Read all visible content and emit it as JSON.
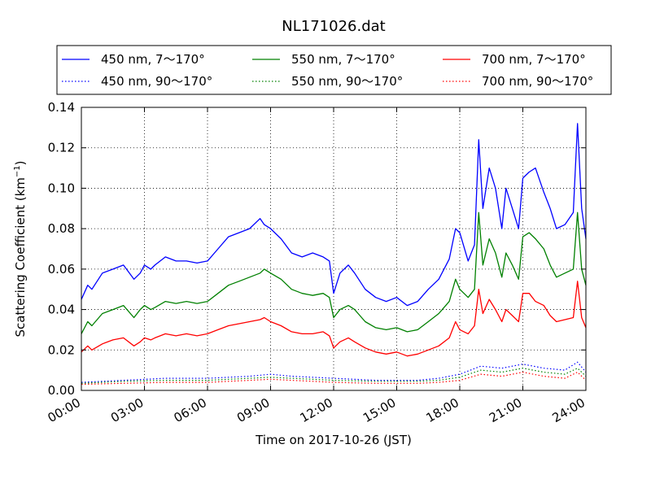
{
  "chart_data": {
    "type": "line",
    "title": "NL171026.dat",
    "xlabel": "Time on 2017-10-26 (JST)",
    "ylabel_main": "Scattering Coefficient (km",
    "ylabel_sup": "−1",
    "ylabel_close": ")",
    "x_unit": "hours",
    "xlim": [
      0,
      24
    ],
    "ylim": [
      0,
      0.14
    ],
    "grid": true,
    "legend": "top",
    "x_ticks": [
      {
        "value": 0,
        "label": "00:00"
      },
      {
        "value": 3,
        "label": "03:00"
      },
      {
        "value": 6,
        "label": "06:00"
      },
      {
        "value": 9,
        "label": "09:00"
      },
      {
        "value": 12,
        "label": "12:00"
      },
      {
        "value": 15,
        "label": "15:00"
      },
      {
        "value": 18,
        "label": "18:00"
      },
      {
        "value": 21,
        "label": "21:00"
      },
      {
        "value": 24,
        "label": "24:00"
      }
    ],
    "y_ticks": [
      {
        "value": 0.0,
        "label": "0.00"
      },
      {
        "value": 0.02,
        "label": "0.02"
      },
      {
        "value": 0.04,
        "label": "0.04"
      },
      {
        "value": 0.06,
        "label": "0.06"
      },
      {
        "value": 0.08,
        "label": "0.08"
      },
      {
        "value": 0.1,
        "label": "0.10"
      },
      {
        "value": 0.12,
        "label": "0.12"
      },
      {
        "value": 0.14,
        "label": "0.14"
      }
    ],
    "series": [
      {
        "name": "450 nm, 7～170°",
        "color": "#0000ff",
        "style": "solid",
        "x": [
          0,
          0.3,
          0.5,
          1,
          1.5,
          2,
          2.5,
          2.8,
          3,
          3.3,
          3.5,
          4,
          4.5,
          5,
          5.5,
          6,
          6.5,
          7,
          7.5,
          8,
          8.5,
          8.7,
          9,
          9.5,
          10,
          10.5,
          11,
          11.5,
          11.8,
          12,
          12.3,
          12.7,
          13,
          13.5,
          14,
          14.5,
          15,
          15.5,
          16,
          16.5,
          17,
          17.5,
          17.8,
          18,
          18.4,
          18.7,
          18.9,
          19.1,
          19.4,
          19.7,
          20,
          20.2,
          20.5,
          20.8,
          21,
          21.3,
          21.6,
          22,
          22.3,
          22.6,
          23,
          23.4,
          23.6,
          23.8,
          24
        ],
        "y": [
          0.045,
          0.052,
          0.05,
          0.058,
          0.06,
          0.062,
          0.055,
          0.058,
          0.062,
          0.06,
          0.062,
          0.066,
          0.064,
          0.064,
          0.063,
          0.064,
          0.07,
          0.076,
          0.078,
          0.08,
          0.085,
          0.082,
          0.08,
          0.075,
          0.068,
          0.066,
          0.068,
          0.066,
          0.064,
          0.048,
          0.058,
          0.062,
          0.058,
          0.05,
          0.046,
          0.044,
          0.046,
          0.042,
          0.044,
          0.05,
          0.055,
          0.065,
          0.08,
          0.078,
          0.064,
          0.072,
          0.124,
          0.09,
          0.11,
          0.1,
          0.08,
          0.1,
          0.09,
          0.08,
          0.105,
          0.108,
          0.11,
          0.098,
          0.09,
          0.08,
          0.082,
          0.088,
          0.132,
          0.09,
          0.075
        ]
      },
      {
        "name": "450 nm, 90～170°",
        "color": "#0000ff",
        "style": "dotted",
        "x": [
          0,
          2,
          4,
          6,
          8,
          9,
          10,
          12,
          14,
          15,
          16,
          17,
          18,
          19,
          20,
          21,
          22,
          23,
          23.6,
          24
        ],
        "y": [
          0.004,
          0.005,
          0.006,
          0.006,
          0.007,
          0.008,
          0.007,
          0.006,
          0.005,
          0.005,
          0.005,
          0.006,
          0.008,
          0.012,
          0.011,
          0.013,
          0.011,
          0.01,
          0.014,
          0.009
        ]
      },
      {
        "name": "550 nm, 7～170°",
        "color": "#008000",
        "style": "solid",
        "x": [
          0,
          0.3,
          0.5,
          1,
          1.5,
          2,
          2.5,
          2.8,
          3,
          3.3,
          3.5,
          4,
          4.5,
          5,
          5.5,
          6,
          6.5,
          7,
          7.5,
          8,
          8.5,
          8.7,
          9,
          9.5,
          10,
          10.5,
          11,
          11.5,
          11.8,
          12,
          12.3,
          12.7,
          13,
          13.5,
          14,
          14.5,
          15,
          15.5,
          16,
          16.5,
          17,
          17.5,
          17.8,
          18,
          18.4,
          18.7,
          18.9,
          19.1,
          19.4,
          19.7,
          20,
          20.2,
          20.5,
          20.8,
          21,
          21.3,
          21.6,
          22,
          22.3,
          22.6,
          23,
          23.4,
          23.6,
          23.8,
          24
        ],
        "y": [
          0.028,
          0.034,
          0.032,
          0.038,
          0.04,
          0.042,
          0.036,
          0.04,
          0.042,
          0.04,
          0.041,
          0.044,
          0.043,
          0.044,
          0.043,
          0.044,
          0.048,
          0.052,
          0.054,
          0.056,
          0.058,
          0.06,
          0.058,
          0.055,
          0.05,
          0.048,
          0.047,
          0.048,
          0.046,
          0.036,
          0.04,
          0.042,
          0.04,
          0.034,
          0.031,
          0.03,
          0.031,
          0.029,
          0.03,
          0.034,
          0.038,
          0.044,
          0.055,
          0.05,
          0.046,
          0.05,
          0.088,
          0.062,
          0.075,
          0.068,
          0.056,
          0.068,
          0.062,
          0.055,
          0.076,
          0.078,
          0.075,
          0.07,
          0.062,
          0.056,
          0.058,
          0.06,
          0.088,
          0.06,
          0.052
        ]
      },
      {
        "name": "550 nm, 90～170°",
        "color": "#008000",
        "style": "dotted",
        "x": [
          0,
          2,
          4,
          6,
          8,
          9,
          10,
          12,
          14,
          15,
          16,
          17,
          18,
          19,
          20,
          21,
          22,
          23,
          23.6,
          24
        ],
        "y": [
          0.0035,
          0.0045,
          0.005,
          0.005,
          0.006,
          0.0065,
          0.006,
          0.005,
          0.0045,
          0.0045,
          0.0045,
          0.005,
          0.0065,
          0.01,
          0.009,
          0.011,
          0.009,
          0.008,
          0.011,
          0.007
        ]
      },
      {
        "name": "700 nm, 7～170°",
        "color": "#ff0000",
        "style": "solid",
        "x": [
          0,
          0.3,
          0.5,
          1,
          1.5,
          2,
          2.5,
          2.8,
          3,
          3.3,
          3.5,
          4,
          4.5,
          5,
          5.5,
          6,
          6.5,
          7,
          7.5,
          8,
          8.5,
          8.7,
          9,
          9.5,
          10,
          10.5,
          11,
          11.5,
          11.8,
          12,
          12.3,
          12.7,
          13,
          13.5,
          14,
          14.5,
          15,
          15.5,
          16,
          16.5,
          17,
          17.5,
          17.8,
          18,
          18.4,
          18.7,
          18.9,
          19.1,
          19.4,
          19.7,
          20,
          20.2,
          20.5,
          20.8,
          21,
          21.3,
          21.6,
          22,
          22.3,
          22.6,
          23,
          23.4,
          23.6,
          23.8,
          24
        ],
        "y": [
          0.019,
          0.022,
          0.02,
          0.023,
          0.025,
          0.026,
          0.022,
          0.024,
          0.026,
          0.025,
          0.026,
          0.028,
          0.027,
          0.028,
          0.027,
          0.028,
          0.03,
          0.032,
          0.033,
          0.034,
          0.035,
          0.036,
          0.034,
          0.032,
          0.029,
          0.028,
          0.028,
          0.029,
          0.027,
          0.021,
          0.024,
          0.026,
          0.024,
          0.021,
          0.019,
          0.018,
          0.019,
          0.017,
          0.018,
          0.02,
          0.022,
          0.026,
          0.034,
          0.03,
          0.028,
          0.032,
          0.05,
          0.038,
          0.045,
          0.04,
          0.034,
          0.04,
          0.037,
          0.034,
          0.048,
          0.048,
          0.044,
          0.042,
          0.037,
          0.034,
          0.035,
          0.036,
          0.054,
          0.036,
          0.031
        ]
      },
      {
        "name": "700 nm, 90～170°",
        "color": "#ff0000",
        "style": "dotted",
        "x": [
          0,
          2,
          4,
          6,
          8,
          9,
          10,
          12,
          14,
          15,
          16,
          17,
          18,
          19,
          20,
          21,
          22,
          23,
          23.6,
          24
        ],
        "y": [
          0.003,
          0.0035,
          0.004,
          0.004,
          0.005,
          0.0055,
          0.005,
          0.004,
          0.0035,
          0.0035,
          0.0035,
          0.004,
          0.005,
          0.008,
          0.007,
          0.009,
          0.007,
          0.006,
          0.009,
          0.005
        ]
      }
    ]
  }
}
